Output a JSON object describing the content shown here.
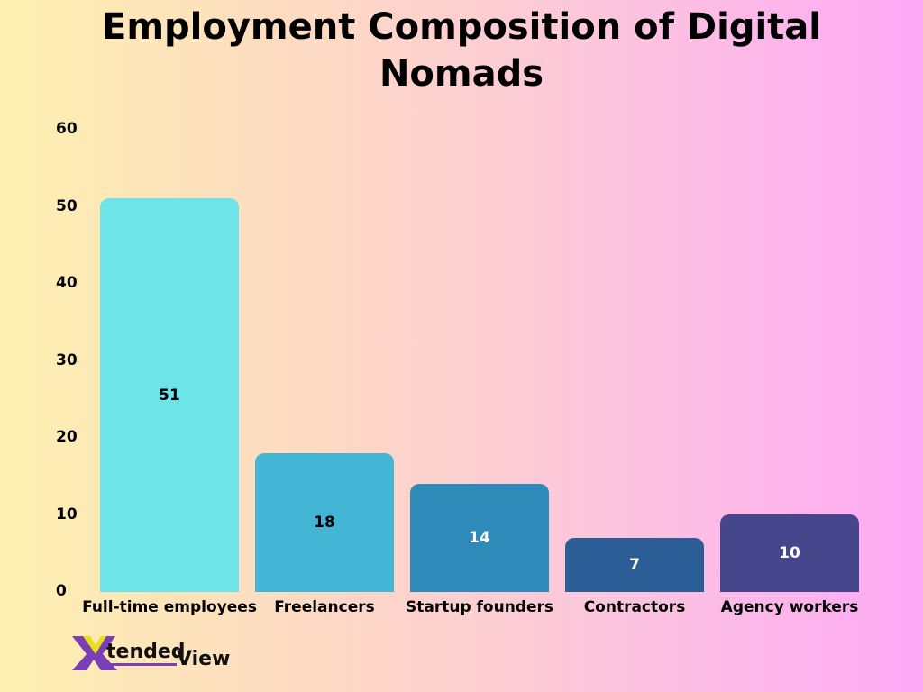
{
  "chart_data": {
    "type": "bar",
    "title": "Employment Composition of Digital Nomads",
    "title_lines": [
      "Employment Composition of Digital",
      "Nomads"
    ],
    "categories": [
      "Full-time employees",
      "Freelancers",
      "Startup founders",
      "Contractors",
      "Agency workers"
    ],
    "values": [
      51,
      18,
      14,
      7,
      10
    ],
    "colors": [
      "#6ce4e8",
      "#43b6d6",
      "#2e8ab8",
      "#2b5e97",
      "#45468c"
    ],
    "label_colors": [
      "#000000",
      "#000000",
      "#ffffff",
      "#ffffff",
      "#ffffff"
    ],
    "xlabel": "",
    "ylabel": "",
    "ylim": [
      0,
      60
    ],
    "yticks": [
      0,
      10,
      20,
      30,
      40,
      50,
      60
    ],
    "grid": false,
    "legend": "none",
    "data_labels": true
  },
  "branding": {
    "logo_text_1": "tended",
    "logo_text_2": "View",
    "logo_mark": "X"
  }
}
